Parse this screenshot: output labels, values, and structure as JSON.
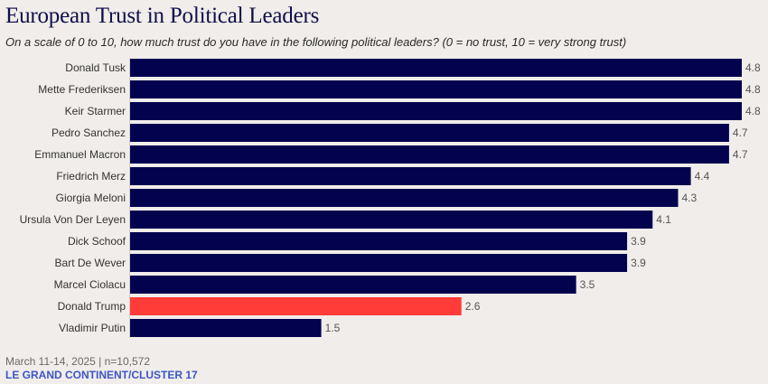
{
  "chart_data": {
    "type": "bar",
    "orientation": "horizontal",
    "title": "European Trust in Political Leaders",
    "subtitle": "On a scale of 0 to 10, how much trust do you have in the following political leaders? (0 = no trust, 10 = very strong trust)",
    "xlabel": "",
    "ylabel": "",
    "grid": false,
    "categories": [
      "Donald Tusk",
      "Mette Frederiksen",
      "Keir Starmer",
      "Pedro Sanchez",
      "Emmanuel Macron",
      "Friedrich Merz",
      "Giorgia Meloni",
      "Ursula Von Der Leyen",
      "Dick Schoof",
      "Bart De Wever",
      "Marcel Ciolacu",
      "Donald Trump",
      "Vladimir Putin"
    ],
    "values": [
      4.8,
      4.8,
      4.8,
      4.7,
      4.7,
      4.4,
      4.3,
      4.1,
      3.9,
      3.9,
      3.5,
      2.6,
      1.5
    ],
    "value_labels": [
      "4.8",
      "4.8",
      "4.8",
      "4.7",
      "4.7",
      "4.4",
      "4.3",
      "4.1",
      "3.9",
      "3.9",
      "3.5",
      "2.6",
      "1.5"
    ],
    "highlight": [
      "Donald Trump"
    ],
    "colors": {
      "default": "#02024f",
      "highlight": "#ff3c38"
    },
    "xlim": [
      0,
      4.8
    ]
  },
  "footer": {
    "date_sample": "March 11-14, 2025 | n=10,572",
    "source": "LE GRAND CONTINENT/CLUSTER 17"
  }
}
